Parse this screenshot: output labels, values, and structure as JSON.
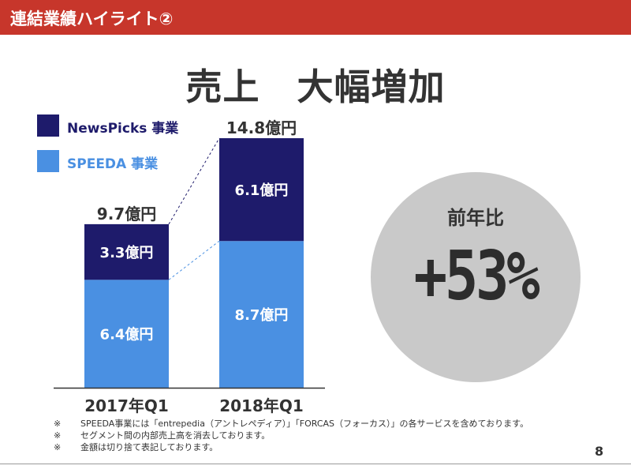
{
  "header": {
    "title": "連結業績ハイライト②"
  },
  "headline": "売上　大幅増加",
  "legend": [
    {
      "label": "NewsPicks 事業",
      "color": "#1e1b6b"
    },
    {
      "label": "SPEEDA 事業",
      "color": "#4a90e2"
    }
  ],
  "chart_data": {
    "type": "bar",
    "stacked": true,
    "categories": [
      "2017年Q1",
      "2018年Q1"
    ],
    "series": [
      {
        "name": "SPEEDA 事業",
        "values": [
          6.4,
          8.7
        ],
        "labels": [
          "6.4億円",
          "8.7億円"
        ],
        "color": "#4a90e2"
      },
      {
        "name": "NewsPicks 事業",
        "values": [
          3.3,
          6.1
        ],
        "labels": [
          "3.3億円",
          "6.1億円"
        ],
        "color": "#1e1b6b"
      }
    ],
    "totals": [
      9.7,
      14.8
    ],
    "total_labels": [
      "9.7億円",
      "14.8億円"
    ],
    "ylim": [
      0,
      14.8
    ],
    "unit": "億円"
  },
  "yoy": {
    "label": "前年比",
    "value": "+53%"
  },
  "notes": [
    {
      "mark": "※",
      "text": "SPEEDA事業には「entrepedia（アントレペディア）」「FORCAS（フォーカス）」の各サービスを含めております。"
    },
    {
      "mark": "※",
      "text": "セグメント間の内部売上高を消去しております。"
    },
    {
      "mark": "※",
      "text": "金額は切り捨て表記しております。"
    }
  ],
  "page_number": "8"
}
